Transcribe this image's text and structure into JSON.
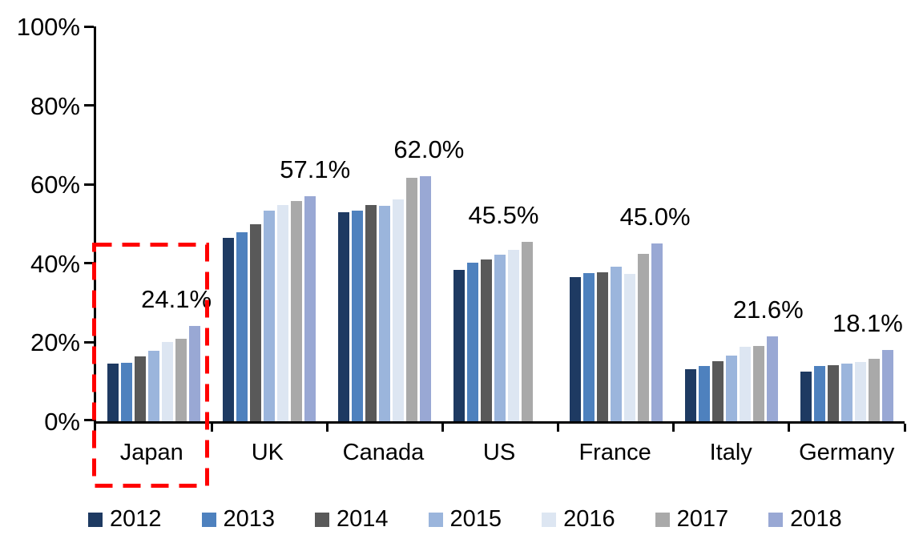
{
  "chart_data": {
    "type": "bar",
    "title": "",
    "categories": [
      "Japan",
      "UK",
      "Canada",
      "US",
      "France",
      "Italy",
      "Germany"
    ],
    "series": [
      {
        "name": "2012",
        "color": "#1E3A62",
        "values": [
          14.7,
          46.4,
          53.0,
          38.3,
          36.5,
          13.2,
          12.5
        ]
      },
      {
        "name": "2013",
        "color": "#4E81BE",
        "values": [
          14.9,
          47.9,
          53.4,
          40.2,
          37.6,
          14.0,
          13.9
        ]
      },
      {
        "name": "2014",
        "color": "#595959",
        "values": [
          16.5,
          50.0,
          54.8,
          41.0,
          37.8,
          15.2,
          14.3
        ]
      },
      {
        "name": "2015",
        "color": "#9BB5DC",
        "values": [
          17.9,
          53.3,
          54.6,
          42.2,
          39.2,
          16.7,
          14.7
        ]
      },
      {
        "name": "2016",
        "color": "#DDE6F2",
        "values": [
          20.0,
          54.7,
          56.1,
          43.5,
          37.3,
          18.8,
          15.1
        ]
      },
      {
        "name": "2017",
        "color": "#A9A9A9",
        "values": [
          20.9,
          55.8,
          61.7,
          45.5,
          42.3,
          19.0,
          15.8
        ]
      },
      {
        "name": "2018",
        "color": "#99A8D4",
        "values": [
          24.1,
          57.1,
          62.0,
          null,
          45.0,
          21.6,
          18.1
        ]
      }
    ],
    "annotations": [
      {
        "category": "Japan",
        "text": "24.1%"
      },
      {
        "category": "UK",
        "text": "57.1%"
      },
      {
        "category": "Canada",
        "text": "62.0%"
      },
      {
        "category": "US",
        "text": "45.5%"
      },
      {
        "category": "France",
        "text": "45.0%"
      },
      {
        "category": "Italy",
        "text": "21.6%"
      },
      {
        "category": "Germany",
        "text": "18.1%"
      }
    ],
    "y_axis": {
      "tick_labels": [
        "0%",
        "20%",
        "40%",
        "60%",
        "80%",
        "100%"
      ],
      "min": 0,
      "max": 100,
      "grid": false
    },
    "legend": {
      "position": "bottom",
      "items": [
        "2012",
        "2013",
        "2014",
        "2015",
        "2016",
        "2017",
        "2018"
      ]
    },
    "highlight": {
      "category": "Japan",
      "shape": "dashed-rectangle",
      "color": "#FF0000"
    }
  }
}
